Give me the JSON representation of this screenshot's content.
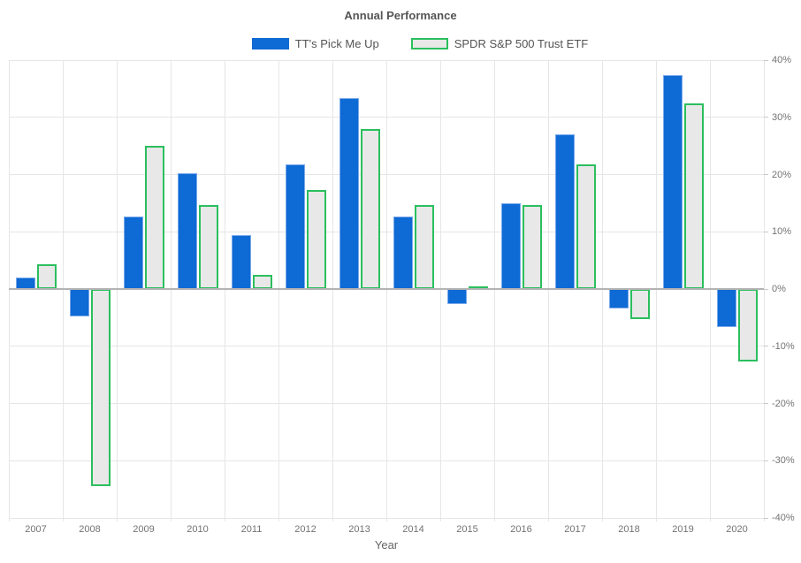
{
  "title": "Annual Performance",
  "chart_data": {
    "type": "bar",
    "title": "Annual Performance",
    "xlabel": "Year",
    "ylabel": "",
    "ylim": [
      -40,
      40
    ],
    "yticks": [
      40,
      30,
      20,
      10,
      0,
      -10,
      -20,
      -30,
      -40
    ],
    "ytick_labels": [
      "40%",
      "30%",
      "20%",
      "10%",
      "0%",
      "-10%",
      "-20%",
      "-30%",
      "-40%"
    ],
    "grid": true,
    "legend_position": "top",
    "categories": [
      "2007",
      "2008",
      "2009",
      "2010",
      "2011",
      "2012",
      "2013",
      "2014",
      "2015",
      "2016",
      "2017",
      "2018",
      "2019",
      "2020"
    ],
    "series": [
      {
        "name": "TT's Pick Me Up",
        "fill": "#0e6ad4",
        "stroke": "#79a8ea",
        "values": [
          2.0,
          -4.8,
          12.6,
          20.2,
          9.4,
          21.7,
          33.3,
          12.7,
          -2.6,
          15.0,
          27.1,
          -3.4,
          37.4,
          -6.7
        ]
      },
      {
        "name": "SPDR S&P 500 Trust ETF",
        "fill": "#e8e8e8",
        "stroke": "#2bbf5e",
        "values": [
          4.3,
          -34.4,
          25.0,
          14.6,
          2.4,
          17.3,
          27.9,
          14.6,
          0.2,
          14.6,
          21.8,
          -5.3,
          32.4,
          -12.7
        ]
      }
    ]
  },
  "colors": {
    "background": "#ffffff",
    "gridline": "#e6e6e6",
    "zero_line": "#b3b3b3",
    "tick": "#c9c9c9",
    "axis_text": "#737373",
    "title_text": "#555555",
    "legend_text": "#545454"
  }
}
